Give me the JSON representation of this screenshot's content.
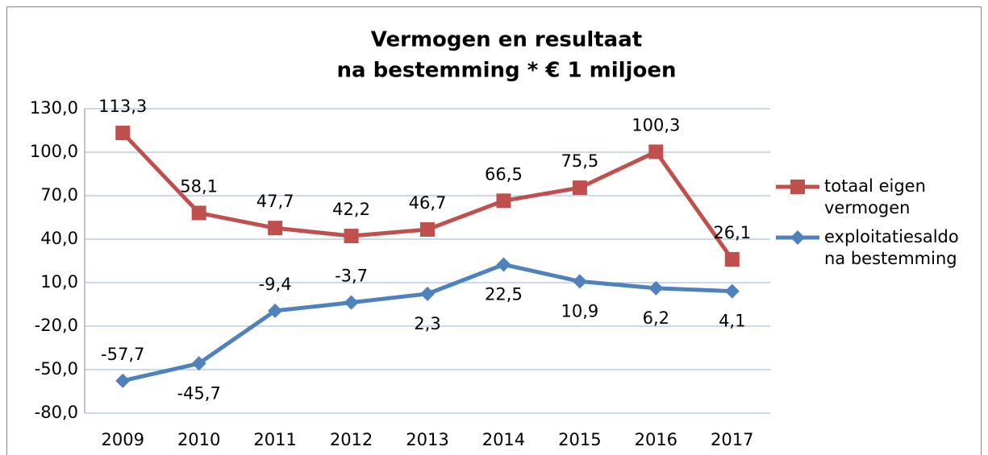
{
  "chart_data": {
    "type": "line",
    "title": [
      "Vermogen en resultaat",
      "na bestemming * € 1 miljoen"
    ],
    "categories": [
      "2009",
      "2010",
      "2011",
      "2012",
      "2013",
      "2014",
      "2015",
      "2016",
      "2017"
    ],
    "series": [
      {
        "name": "totaal eigen vermogen",
        "color": "#c0504d",
        "marker": "square",
        "values": [
          113.3,
          58.1,
          47.7,
          42.2,
          46.7,
          66.5,
          75.5,
          100.3,
          26.1
        ],
        "value_labels": [
          "113,3",
          "58,1",
          "47,7",
          "42,2",
          "46,7",
          "66,5",
          "75,5",
          "100,3",
          "26,1"
        ]
      },
      {
        "name": "exploitatiesaldo na bestemming",
        "color": "#4f81bd",
        "marker": "diamond",
        "values": [
          -57.7,
          -45.7,
          -9.4,
          -3.7,
          2.3,
          22.5,
          10.9,
          6.2,
          4.1
        ],
        "value_labels": [
          "-57,7",
          "-45,7",
          "-9,4",
          "-3,7",
          "2,3",
          "22,5",
          "10,9",
          "6,2",
          "4,1"
        ]
      }
    ],
    "ylim": [
      -80,
      130
    ],
    "yticks": [
      {
        "value": -80,
        "label": "-80,0"
      },
      {
        "value": -50,
        "label": "-50,0"
      },
      {
        "value": -20,
        "label": "-20,0"
      },
      {
        "value": 10,
        "label": "10,0"
      },
      {
        "value": 40,
        "label": "40,0"
      },
      {
        "value": 70,
        "label": "70,0"
      },
      {
        "value": 100,
        "label": "100,0"
      },
      {
        "value": 130,
        "label": "130,0"
      }
    ],
    "grid": true,
    "legend": "right"
  }
}
